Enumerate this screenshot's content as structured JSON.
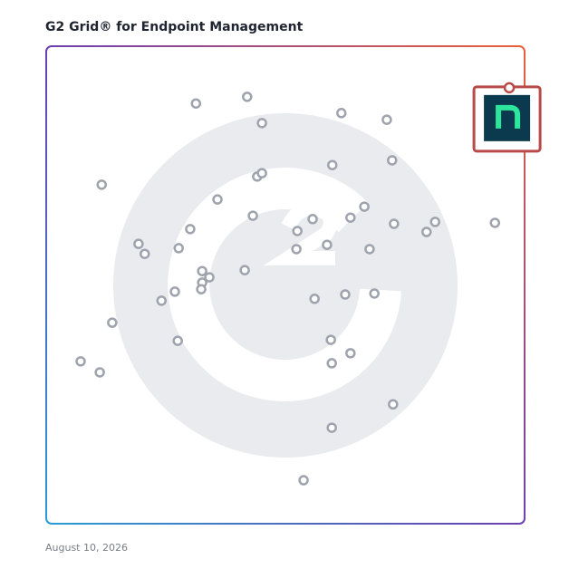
{
  "chart_data": {
    "type": "scatter",
    "title": "G2 Grid® for Endpoint Management",
    "date": "August 10, 2026",
    "xlim": [
      0,
      100
    ],
    "ylim": [
      0,
      100
    ],
    "x": [
      31.3,
      42.0,
      45.1,
      61.7,
      71.2,
      59.8,
      72.3,
      11.6,
      44.1,
      45.1,
      35.8,
      43.2,
      66.5,
      63.6,
      55.7,
      52.5,
      72.7,
      81.3,
      79.5,
      93.8,
      30.1,
      19.3,
      20.6,
      27.7,
      52.3,
      58.7,
      67.6,
      41.5,
      32.6,
      34.1,
      32.6,
      32.4,
      26.9,
      24.1,
      56.1,
      62.5,
      68.6,
      13.8,
      27.5,
      59.5,
      63.6,
      59.7,
      7.2,
      11.2,
      72.5,
      59.7,
      53.8
    ],
    "y": [
      88.0,
      89.4,
      83.9,
      86.0,
      84.6,
      75.1,
      76.1,
      71.0,
      72.7,
      73.4,
      67.9,
      64.5,
      66.4,
      64.1,
      63.8,
      61.3,
      62.8,
      63.2,
      61.1,
      63.0,
      61.7,
      58.6,
      56.5,
      57.7,
      57.5,
      58.4,
      57.5,
      53.1,
      52.9,
      51.6,
      50.5,
      49.1,
      48.6,
      46.7,
      47.1,
      48.0,
      48.2,
      42.1,
      38.3,
      38.5,
      35.7,
      33.6,
      34.0,
      31.7,
      25.0,
      20.1,
      9.1
    ],
    "color": "#9ea3ad",
    "highlight": {
      "x": 96.8,
      "y": 91.3,
      "color": "#b84a48"
    }
  }
}
